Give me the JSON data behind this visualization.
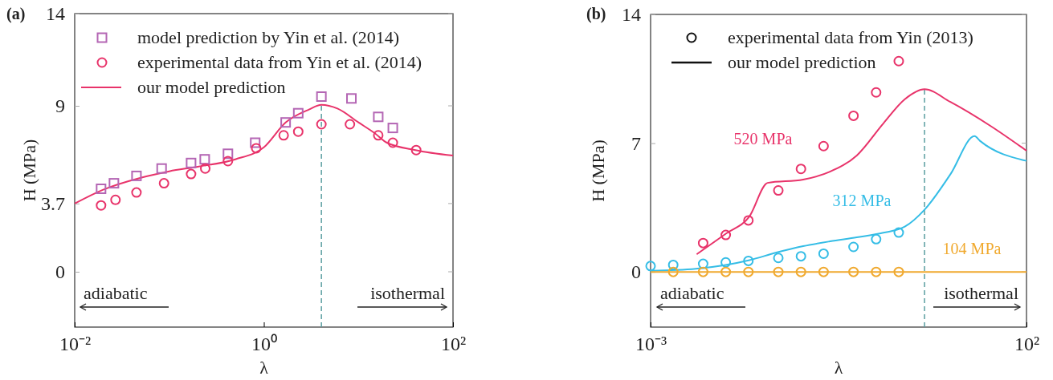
{
  "chart_data": [
    {
      "type": "scatter",
      "title": "(a)",
      "xlabel": "λ",
      "ylabel": "H (MPa)",
      "log": "x",
      "xlim": [
        0.01,
        100
      ],
      "xticks": [
        {
          "value": 0.01,
          "label": "10⁻²"
        },
        {
          "value": 1,
          "label": "10⁰"
        },
        {
          "value": 100,
          "label": "10²"
        }
      ],
      "ylim": [
        -3,
        14
      ],
      "yticks": [
        0,
        3.7,
        9,
        14
      ],
      "legend": "top left",
      "series": [
        {
          "name": "model prediction by Yin et al. (2014)",
          "marker": "square",
          "color": "#b466b4",
          "x": [
            0.019,
            0.026,
            0.045,
            0.083,
            0.17,
            0.237,
            0.417,
            0.81,
            1.7,
            2.31,
            4.06,
            8.43,
            16.2,
            23.1
          ],
          "values": [
            4.5,
            4.8,
            5.2,
            5.6,
            5.9,
            6.1,
            6.4,
            7.0,
            8.1,
            8.6,
            9.5,
            9.4,
            8.4,
            7.8
          ]
        },
        {
          "name": "experimental data from Yin et al. (2014)",
          "marker": "circle",
          "color": "#e8336a",
          "x": [
            0.019,
            0.027,
            0.045,
            0.088,
            0.17,
            0.24,
            0.417,
            0.83,
            1.62,
            2.31,
            4.06,
            8.13,
            16.2,
            23.1,
            40.8
          ],
          "values": [
            3.6,
            3.9,
            4.3,
            4.8,
            5.3,
            5.6,
            6.0,
            6.7,
            7.4,
            7.6,
            8.0,
            8.0,
            7.4,
            7.0,
            6.6
          ]
        },
        {
          "name": "our model prediction",
          "type": "line",
          "color": "#e8336a",
          "x": [
            0.01,
            0.02,
            0.05,
            0.1,
            0.2,
            0.5,
            1,
            1.7,
            3,
            4.06,
            6,
            10,
            15,
            20,
            40,
            100
          ],
          "values": [
            3.7,
            4.45,
            5.1,
            5.45,
            5.7,
            6.1,
            6.75,
            8.1,
            8.8,
            9.05,
            8.85,
            8.1,
            7.5,
            7.0,
            6.6,
            6.3
          ]
        }
      ],
      "ref_lines": [
        {
          "axis": "x",
          "value": 4.06,
          "color": "#5a9ea0",
          "line_style": "dashed"
        }
      ],
      "annotations": [
        "adiabatic",
        "isothermal"
      ]
    },
    {
      "type": "line",
      "title": "(b)",
      "xlabel": "λ",
      "ylabel": "H (MPa)",
      "log": "x",
      "xlim": [
        0.001,
        100
      ],
      "xticks": [
        {
          "value": 0.001,
          "label": "10⁻³"
        },
        {
          "value": 100,
          "label": "10²"
        }
      ],
      "ylim": [
        -3,
        14
      ],
      "yticks": [
        0,
        7,
        14
      ],
      "series": [
        {
          "name": "520 MPa",
          "color": "#e8336a",
          "x": [
            0.0041,
            0.0102,
            0.0205,
            0.036,
            0.107,
            0.243,
            0.553,
            1.25,
            2.41,
            4.4,
            9.73,
            33.4,
            100
          ],
          "values": [
            0.96,
            2.1,
            3.0,
            4.84,
            5.02,
            5.45,
            6.33,
            8.08,
            9.39,
            9.93,
            9.24,
            7.93,
            6.59
          ]
        },
        {
          "name": "312 MPa",
          "color": "#35bde6",
          "x": [
            0.001,
            0.004,
            0.0207,
            0.047,
            0.107,
            0.243,
            0.553,
            1.25,
            2.41,
            4.4,
            9.73,
            20.4,
            24,
            100
          ],
          "values": [
            0.06,
            0.17,
            0.64,
            1.05,
            1.4,
            1.66,
            1.88,
            2.13,
            2.46,
            3.38,
            5.31,
            7.38,
            7.13,
            6.04
          ]
        },
        {
          "name": "104 MPa",
          "color": "#f0a92e",
          "x": [
            0.001,
            100
          ],
          "values": [
            0,
            0
          ]
        },
        {
          "type": "scatter",
          "marker": "circle",
          "color": "#e8336a",
          "x": [
            0.005,
            0.01,
            0.02,
            0.05,
            0.1,
            0.2,
            0.5,
            1,
            2
          ],
          "values": [
            1.57,
            2.01,
            2.8,
            4.43,
            5.6,
            6.84,
            8.49,
            9.76,
            11.46
          ]
        },
        {
          "type": "scatter",
          "marker": "circle",
          "color": "#35bde6",
          "x": [
            0.001,
            0.002,
            0.005,
            0.01,
            0.02,
            0.05,
            0.1,
            0.2,
            0.5,
            1,
            2
          ],
          "values": [
            0.32,
            0.38,
            0.44,
            0.52,
            0.6,
            0.76,
            0.85,
            0.99,
            1.36,
            1.78,
            2.14
          ]
        },
        {
          "type": "scatter",
          "marker": "circle",
          "color": "#f0a92e",
          "x": [
            0.002,
            0.005,
            0.01,
            0.02,
            0.05,
            0.1,
            0.2,
            0.5,
            1,
            2
          ],
          "values": [
            0,
            0,
            0,
            0,
            0,
            0,
            0,
            0,
            0,
            0
          ]
        }
      ],
      "ref_lines": [
        {
          "axis": "x",
          "value": 4.4,
          "color": "#5a9ea0",
          "line_style": "dashed"
        }
      ],
      "annotations": [
        "experimental data from Yin (2013)",
        "our model prediction",
        "adiabatic",
        "isothermal"
      ]
    }
  ]
}
